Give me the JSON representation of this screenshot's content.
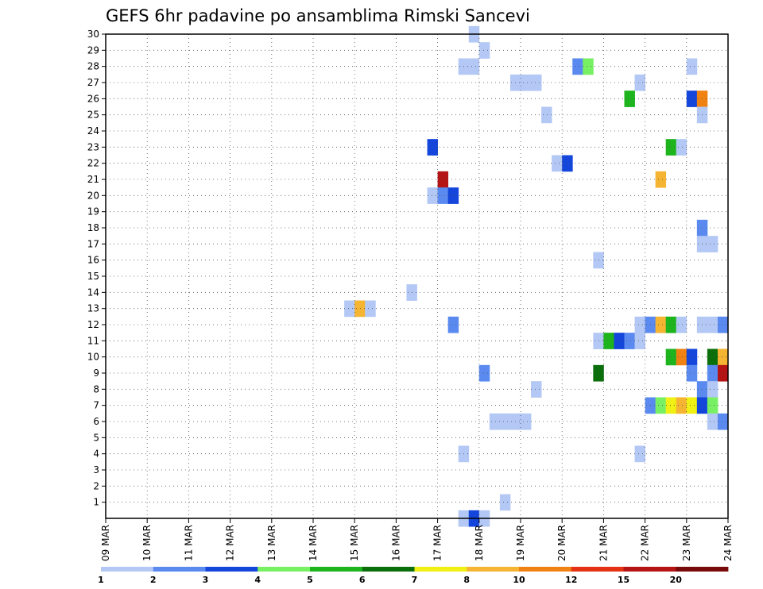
{
  "chart_data": {
    "type": "heatmap",
    "title": "GEFS 6hr padavine po ansamblima Rimski Sancevi",
    "xlabel": "",
    "ylabel": "",
    "x_tick_labels": [
      "09 MAR",
      "10 MAR",
      "11 MAR",
      "12 MAR",
      "13 MAR",
      "14 MAR",
      "15 MAR",
      "16 MAR",
      "17 MAR",
      "18 MAR",
      "19 MAR",
      "20 MAR",
      "21 MAR",
      "22 MAR",
      "23 MAR",
      "24 MAR"
    ],
    "x_range_steps": [
      0,
      60
    ],
    "steps_per_day": 4,
    "y_ticks": [
      1,
      2,
      3,
      4,
      5,
      6,
      7,
      8,
      9,
      10,
      11,
      12,
      13,
      14,
      15,
      16,
      17,
      18,
      19,
      20,
      21,
      22,
      23,
      24,
      25,
      26,
      27,
      28,
      29,
      30
    ],
    "y_range": [
      0,
      30
    ],
    "grid": "dotted",
    "legend": {
      "position": "bottom",
      "labels": [
        "1",
        "2",
        "3",
        "4",
        "5",
        "6",
        "7",
        "8",
        "10",
        "12",
        "15",
        "20"
      ],
      "colors": [
        "#b4c8f5",
        "#5a8af0",
        "#1446dc",
        "#78f064",
        "#1eb41e",
        "#0a6e0a",
        "#f0f014",
        "#f5b432",
        "#f08214",
        "#e63214",
        "#b41414",
        "#780a0a"
      ]
    },
    "cells": [
      [
        35,
        30,
        1
      ],
      [
        36,
        29,
        1
      ],
      [
        34,
        28,
        1
      ],
      [
        35,
        28,
        1
      ],
      [
        45,
        28,
        2
      ],
      [
        46,
        28,
        4
      ],
      [
        56,
        28,
        1
      ],
      [
        39,
        27,
        1
      ],
      [
        40,
        27,
        1
      ],
      [
        41,
        27,
        1
      ],
      [
        51,
        27,
        1
      ],
      [
        50,
        26,
        5
      ],
      [
        56,
        26,
        3
      ],
      [
        57,
        26,
        10
      ],
      [
        42,
        25,
        1
      ],
      [
        57,
        25,
        1
      ],
      [
        31,
        23,
        3
      ],
      [
        54,
        23,
        5
      ],
      [
        55,
        23,
        1
      ],
      [
        43,
        22,
        1
      ],
      [
        44,
        22,
        3
      ],
      [
        32,
        21,
        15
      ],
      [
        53,
        21,
        8
      ],
      [
        31,
        20,
        1
      ],
      [
        32,
        20,
        2
      ],
      [
        33,
        20,
        3
      ],
      [
        57,
        18,
        2
      ],
      [
        57,
        17,
        1
      ],
      [
        58,
        17,
        1
      ],
      [
        47,
        16,
        1
      ],
      [
        29,
        14,
        1
      ],
      [
        23,
        13,
        1
      ],
      [
        24,
        13,
        8
      ],
      [
        25,
        13,
        1
      ],
      [
        33,
        12,
        2
      ],
      [
        51,
        12,
        1
      ],
      [
        52,
        12,
        2
      ],
      [
        53,
        12,
        8
      ],
      [
        54,
        12,
        5
      ],
      [
        55,
        12,
        1
      ],
      [
        57,
        12,
        1
      ],
      [
        58,
        12,
        1
      ],
      [
        59,
        12,
        2
      ],
      [
        47,
        11,
        1
      ],
      [
        48,
        11,
        5
      ],
      [
        49,
        11,
        3
      ],
      [
        50,
        11,
        2
      ],
      [
        51,
        11,
        1
      ],
      [
        54,
        10,
        5
      ],
      [
        55,
        10,
        10
      ],
      [
        56,
        10,
        3
      ],
      [
        58,
        10,
        6
      ],
      [
        59,
        10,
        8
      ],
      [
        36,
        9,
        2
      ],
      [
        47,
        9,
        6
      ],
      [
        56,
        9,
        2
      ],
      [
        58,
        9,
        2
      ],
      [
        59,
        9,
        15
      ],
      [
        41,
        8,
        1
      ],
      [
        57,
        8,
        2
      ],
      [
        58,
        8,
        1
      ],
      [
        52,
        7,
        2
      ],
      [
        53,
        7,
        4
      ],
      [
        54,
        7,
        7
      ],
      [
        55,
        7,
        8
      ],
      [
        56,
        7,
        7
      ],
      [
        57,
        7,
        3
      ],
      [
        58,
        7,
        4
      ],
      [
        37,
        6,
        1
      ],
      [
        38,
        6,
        1
      ],
      [
        39,
        6,
        1
      ],
      [
        40,
        6,
        1
      ],
      [
        58,
        6,
        1
      ],
      [
        59,
        6,
        2
      ],
      [
        34,
        4,
        1
      ],
      [
        51,
        4,
        1
      ],
      [
        38,
        1,
        1
      ],
      [
        34,
        0,
        1
      ],
      [
        35,
        0,
        3
      ],
      [
        36,
        0,
        1
      ]
    ]
  }
}
